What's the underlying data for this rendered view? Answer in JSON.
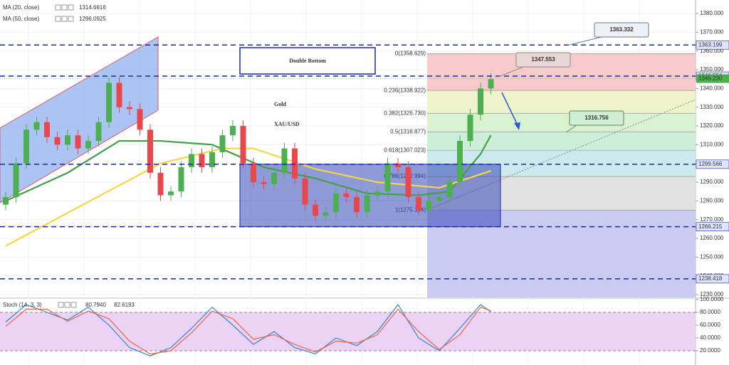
{
  "chart_data": {
    "type": "candlestick",
    "title": "Double Bottom",
    "annotations": [
      "Gold",
      "XAU/USD"
    ],
    "candles": {
      "open": [
        1278,
        1282,
        1300,
        1318,
        1322,
        1314,
        1310,
        1315,
        1308,
        1312,
        1322,
        1343,
        1330,
        1329,
        1318,
        1295,
        1283,
        1285,
        1298,
        1305,
        1298,
        1306,
        1315,
        1320,
        1300,
        1290,
        1289,
        1295,
        1308,
        1292,
        1278,
        1272,
        1274,
        1284,
        1282,
        1274,
        1283,
        1285,
        1300,
        1298,
        1282,
        1275,
        1280,
        1282,
        1290,
        1312,
        1326,
        1340
      ],
      "high": [
        1285,
        1303,
        1321,
        1325,
        1325,
        1317,
        1318,
        1318,
        1315,
        1325,
        1346,
        1346,
        1333,
        1332,
        1321,
        1298,
        1288,
        1301,
        1308,
        1308,
        1309,
        1318,
        1323,
        1323,
        1303,
        1293,
        1298,
        1311,
        1311,
        1295,
        1281,
        1277,
        1287,
        1287,
        1285,
        1286,
        1288,
        1303,
        1303,
        1301,
        1285,
        1283,
        1285,
        1293,
        1315,
        1329,
        1343,
        1348
      ],
      "low": [
        1275,
        1279,
        1297,
        1315,
        1311,
        1307,
        1307,
        1305,
        1305,
        1309,
        1319,
        1327,
        1326,
        1315,
        1292,
        1280,
        1280,
        1282,
        1295,
        1295,
        1295,
        1303,
        1312,
        1297,
        1287,
        1286,
        1286,
        1292,
        1289,
        1275,
        1269,
        1269,
        1271,
        1279,
        1271,
        1271,
        1280,
        1282,
        1295,
        1279,
        1272,
        1272,
        1277,
        1279,
        1287,
        1309,
        1323,
        1337
      ],
      "close": [
        1282,
        1300,
        1318,
        1322,
        1314,
        1310,
        1315,
        1308,
        1312,
        1322,
        1343,
        1330,
        1329,
        1318,
        1295,
        1283,
        1285,
        1298,
        1305,
        1298,
        1306,
        1315,
        1320,
        1300,
        1290,
        1289,
        1295,
        1308,
        1292,
        1278,
        1272,
        1274,
        1284,
        1282,
        1274,
        1283,
        1285,
        1300,
        1298,
        1282,
        1275,
        1280,
        1282,
        1290,
        1312,
        1326,
        1340,
        1345
      ]
    },
    "up_color": "#4caf50",
    "down_color": "#e8474c",
    "series": [
      {
        "name": "MA (20, close)",
        "color": "#43a047",
        "last": 1314.6616,
        "x": [
          0,
          6,
          11,
          15,
          20,
          25,
          30,
          35,
          40,
          43,
          46,
          47
        ],
        "values": [
          1280,
          1295,
          1312,
          1312,
          1310,
          1298,
          1292,
          1284,
          1283,
          1285,
          1305,
          1315
        ]
      },
      {
        "name": "MA (50, close)",
        "color": "#f5d742",
        "last": 1296.0925,
        "x": [
          0,
          15,
          21,
          24,
          30,
          36,
          42,
          47
        ],
        "values": [
          1256,
          1300,
          1308,
          1308,
          1297,
          1290,
          1287,
          1296
        ]
      }
    ],
    "ylim": [
      1228.5,
      1387.2
    ],
    "yticks": [
      {
        "value": 1230,
        "label": "1230.000"
      },
      {
        "value": 1240,
        "label": "1240.000"
      },
      {
        "value": 1250,
        "label": "1250.000"
      },
      {
        "value": 1260,
        "label": "1260.000"
      },
      {
        "value": 1270,
        "label": "1270.000"
      },
      {
        "value": 1280,
        "label": "1280.000"
      },
      {
        "value": 1290,
        "label": "1290.000"
      },
      {
        "value": 1300,
        "label": "1300.000"
      },
      {
        "value": 1310,
        "label": "1310.000"
      },
      {
        "value": 1320,
        "label": "1320.000"
      },
      {
        "value": 1330,
        "label": "1330.000"
      },
      {
        "value": 1340,
        "label": "1340.000"
      },
      {
        "value": 1350,
        "label": "1350.000"
      },
      {
        "value": 1360,
        "label": "1360.000"
      },
      {
        "value": 1370,
        "label": "1370.000"
      },
      {
        "value": 1380,
        "label": "1380.000"
      }
    ],
    "levels": [
      1363.199,
      1346.554,
      1299.566,
      1266.215,
      1238.418
    ],
    "level_color": "#1a2a9e",
    "current_price": {
      "value": 1345.23,
      "label": "1345.230",
      "color": "#4caf50"
    },
    "fib": [
      {
        "value": 1358.629,
        "label": "0(1358.629)",
        "color": "#f6caca"
      },
      {
        "value": 1338.922,
        "label": "0.236(1338.922)",
        "color": "#eef3cc"
      },
      {
        "value": 1326.73,
        "label": "0.382(1326.730)",
        "color": "#d9f1cf"
      },
      {
        "value": 1316.877,
        "label": "0.5(1316.877)",
        "color": "#cdefd9"
      },
      {
        "value": 1307.023,
        "label": "0.618(1307.023)",
        "color": "#cbe9ee"
      },
      {
        "value": 1292.994,
        "label": "0.786(1292.994)",
        "color": "#e2e2e2"
      },
      {
        "value": 1275.104,
        "label": "1(1275.104)",
        "color": "#c9cbf1"
      }
    ],
    "callouts": [
      1363.332,
      1347.553,
      1316.756
    ],
    "stoch": {
      "name": "Stoch (14, 3, 3)",
      "ylim": [
        0,
        100
      ],
      "yticks": [
        {
          "value": 20,
          "label": "20.0000"
        },
        {
          "value": 40,
          "label": "40.0000"
        },
        {
          "value": 60,
          "label": "60.0000"
        },
        {
          "value": 80,
          "label": "80.0000"
        },
        {
          "value": 100,
          "label": "100.0000"
        }
      ],
      "series": [
        {
          "color": "#2e86de",
          "last": {
            "value": 80.794,
            "label": "80.7940"
          },
          "x": [
            0,
            2,
            4,
            6,
            8,
            10,
            12,
            14,
            16,
            18,
            20,
            22,
            24,
            26,
            28,
            30,
            32,
            34,
            36,
            38,
            40,
            42,
            44,
            46,
            47
          ],
          "values": [
            65,
            92,
            80,
            68,
            88,
            60,
            25,
            12,
            25,
            55,
            88,
            60,
            30,
            50,
            25,
            15,
            40,
            28,
            50,
            92,
            40,
            20,
            55,
            92,
            80.794
          ]
        },
        {
          "color": "#f0643c",
          "last": {
            "value": 82.6193,
            "label": "82.6193"
          },
          "x": [
            0,
            2,
            4,
            6,
            8,
            10,
            12,
            14,
            16,
            18,
            20,
            22,
            24,
            26,
            28,
            30,
            32,
            34,
            36,
            38,
            40,
            42,
            44,
            46,
            47
          ],
          "values": [
            58,
            85,
            85,
            66,
            82,
            70,
            35,
            15,
            20,
            48,
            82,
            70,
            38,
            45,
            30,
            18,
            35,
            32,
            45,
            85,
            50,
            22,
            45,
            88,
            82.6193
          ]
        }
      ]
    }
  }
}
